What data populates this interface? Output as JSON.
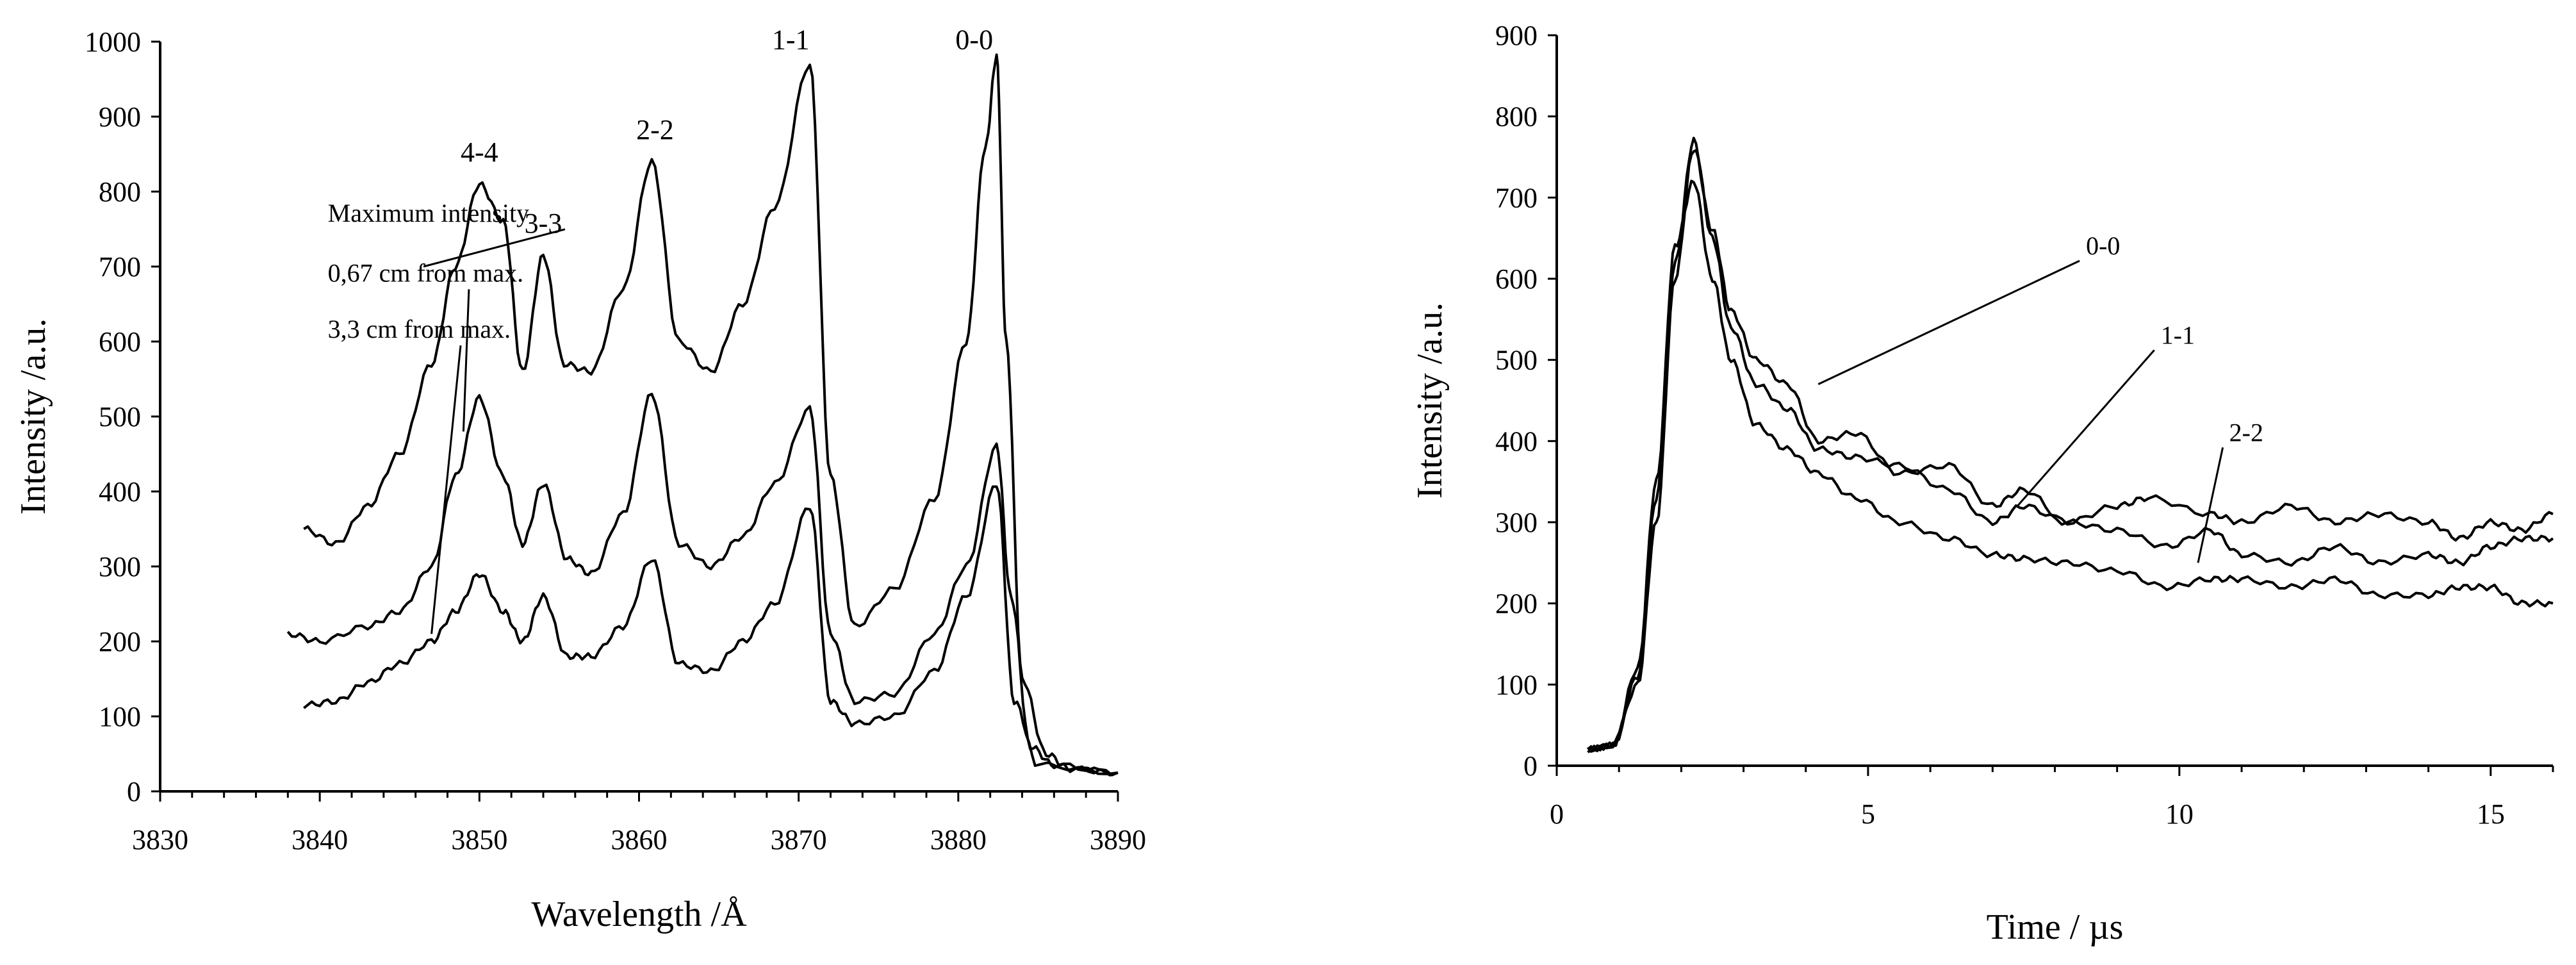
{
  "chart_data": [
    {
      "type": "line",
      "xlabel": "Wavelength /Å",
      "ylabel": "Intensity /a.u.",
      "xlim": [
        3830,
        3890
      ],
      "ylim": [
        0,
        1000
      ],
      "xticks": [
        3830,
        3840,
        3850,
        3860,
        3870,
        3880,
        3890
      ],
      "yticks": [
        0,
        100,
        200,
        300,
        400,
        500,
        600,
        700,
        800,
        900,
        1000
      ],
      "grid": false,
      "series": [
        {
          "name": "Maximum intensity",
          "x": [
            3839,
            3841,
            3843,
            3845,
            3847,
            3848.5,
            3850,
            3851.5,
            3852.7,
            3854,
            3855.3,
            3857,
            3859,
            3860.8,
            3862.5,
            3864.5,
            3866.5,
            3868.5,
            3870.7,
            3872,
            3873.5,
            3876,
            3878.5,
            3880.5,
            3881.7,
            3882.4,
            3883,
            3884,
            3885.5,
            3887,
            3890
          ],
          "y": [
            350,
            330,
            380,
            450,
            570,
            700,
            810,
            760,
            560,
            715,
            570,
            560,
            670,
            840,
            600,
            560,
            650,
            780,
            970,
            420,
            220,
            270,
            390,
            600,
            860,
            980,
            600,
            150,
            50,
            30,
            25
          ]
        },
        {
          "name": "0,67 cm from max.",
          "x": [
            3838,
            3840,
            3843,
            3845,
            3847,
            3848.5,
            3850,
            3851.5,
            3852.7,
            3854,
            3855.5,
            3857,
            3859,
            3860.8,
            3862.5,
            3864.5,
            3866.5,
            3868.5,
            3870.7,
            3872,
            3873.5,
            3876,
            3878.5,
            3880.5,
            3882.4,
            3883.3,
            3884.5,
            3886,
            3890
          ],
          "y": [
            210,
            200,
            220,
            240,
            300,
            420,
            525,
            420,
            330,
            410,
            310,
            290,
            370,
            530,
            330,
            300,
            340,
            410,
            510,
            210,
            120,
            130,
            210,
            300,
            460,
            260,
            60,
            35,
            25
          ]
        },
        {
          "name": "3,3 cm from max.",
          "x": [
            3839,
            3841,
            3843,
            3845,
            3847,
            3848.5,
            3850,
            3851.5,
            3852.7,
            3854,
            3855.5,
            3857,
            3859,
            3860.8,
            3862.5,
            3864.5,
            3866.5,
            3868.5,
            3870.7,
            3872,
            3873.5,
            3876,
            3878.5,
            3880.5,
            3882.4,
            3883.5,
            3885,
            3890
          ],
          "y": [
            115,
            120,
            145,
            170,
            200,
            240,
            290,
            240,
            200,
            260,
            180,
            180,
            220,
            310,
            170,
            160,
            200,
            250,
            380,
            120,
            90,
            100,
            160,
            260,
            410,
            120,
            35,
            25
          ]
        }
      ],
      "annotations": {
        "peaks": [
          {
            "label": "4-4",
            "x": 3850,
            "y": 830
          },
          {
            "label": "3-3",
            "x": 3854,
            "y": 735
          },
          {
            "label": "2-2",
            "x": 3861,
            "y": 860
          },
          {
            "label": "1-1",
            "x": 3869.5,
            "y": 980
          },
          {
            "label": "0-0",
            "x": 3881,
            "y": 980
          }
        ],
        "series_labels": [
          {
            "text": "Maximum intensity",
            "text_x": 3840.5,
            "text_y": 760,
            "target_x": 3846.5,
            "target_y": 700
          },
          {
            "text": "0,67 cm from max.",
            "text_x": 3840.5,
            "text_y": 680,
            "target_x": 3849,
            "target_y": 480
          },
          {
            "text": "3,3 cm from max.",
            "text_x": 3840.5,
            "text_y": 605,
            "target_x": 3847,
            "target_y": 210
          }
        ]
      }
    },
    {
      "type": "line",
      "xlabel": "Time / µs",
      "ylabel": "Intensity /a.u.",
      "xlim": [
        0,
        16
      ],
      "ylim": [
        0,
        900
      ],
      "xticks": [
        0,
        5,
        10,
        15
      ],
      "yticks": [
        0,
        100,
        200,
        300,
        400,
        500,
        600,
        700,
        800,
        900
      ],
      "grid": false,
      "series": [
        {
          "name": "0-0",
          "x": [
            0.5,
            0.9,
            1.3,
            1.6,
            1.9,
            2.2,
            2.5,
            2.8,
            3.2,
            3.7,
            4.2,
            4.8,
            5.5,
            6.3,
            7.0,
            7.5,
            8.2,
            9.0,
            9.5,
            10.5,
            11.0,
            11.8,
            12.5,
            13.2,
            14.0,
            14.5,
            15.0,
            15.5,
            16.0
          ],
          "y": [
            20,
            25,
            100,
            300,
            600,
            760,
            660,
            560,
            500,
            470,
            400,
            410,
            360,
            370,
            320,
            340,
            300,
            320,
            330,
            310,
            300,
            320,
            300,
            310,
            300,
            280,
            300,
            290,
            310
          ]
        },
        {
          "name": "1-1",
          "x": [
            0.5,
            0.9,
            1.3,
            1.6,
            1.9,
            2.2,
            2.5,
            2.8,
            3.2,
            3.7,
            4.2,
            4.8,
            5.5,
            6.3,
            7.0,
            7.5,
            8.2,
            9.0,
            9.8,
            10.5,
            11.0,
            11.8,
            12.5,
            13.2,
            14.0,
            14.5,
            15.0,
            15.5,
            16.0
          ],
          "y": [
            20,
            25,
            110,
            330,
            620,
            770,
            650,
            540,
            470,
            440,
            390,
            380,
            370,
            340,
            300,
            320,
            300,
            290,
            270,
            290,
            260,
            250,
            270,
            250,
            260,
            250,
            270,
            280,
            280
          ]
        },
        {
          "name": "2-2",
          "x": [
            0.5,
            0.9,
            1.3,
            1.6,
            1.9,
            2.2,
            2.5,
            2.8,
            3.2,
            3.7,
            4.2,
            4.8,
            5.5,
            6.3,
            7.0,
            7.5,
            8.2,
            9.0,
            9.8,
            10.5,
            11.0,
            11.8,
            12.5,
            13.2,
            14.0,
            14.5,
            15.0,
            15.5,
            16.0
          ],
          "y": [
            20,
            25,
            120,
            350,
            640,
            720,
            600,
            500,
            420,
            390,
            360,
            330,
            300,
            280,
            260,
            255,
            250,
            240,
            220,
            230,
            230,
            220,
            230,
            210,
            210,
            220,
            220,
            200,
            200
          ]
        }
      ],
      "annotations": {
        "series_labels": [
          {
            "text": "0-0",
            "text_x": 8.5,
            "text_y": 630,
            "target_x": 4.2,
            "target_y": 470
          },
          {
            "text": "1-1",
            "text_x": 9.7,
            "text_y": 520,
            "target_x": 7.4,
            "target_y": 320
          },
          {
            "text": "2-2",
            "text_x": 10.8,
            "text_y": 400,
            "target_x": 10.3,
            "target_y": 250
          }
        ]
      }
    }
  ]
}
